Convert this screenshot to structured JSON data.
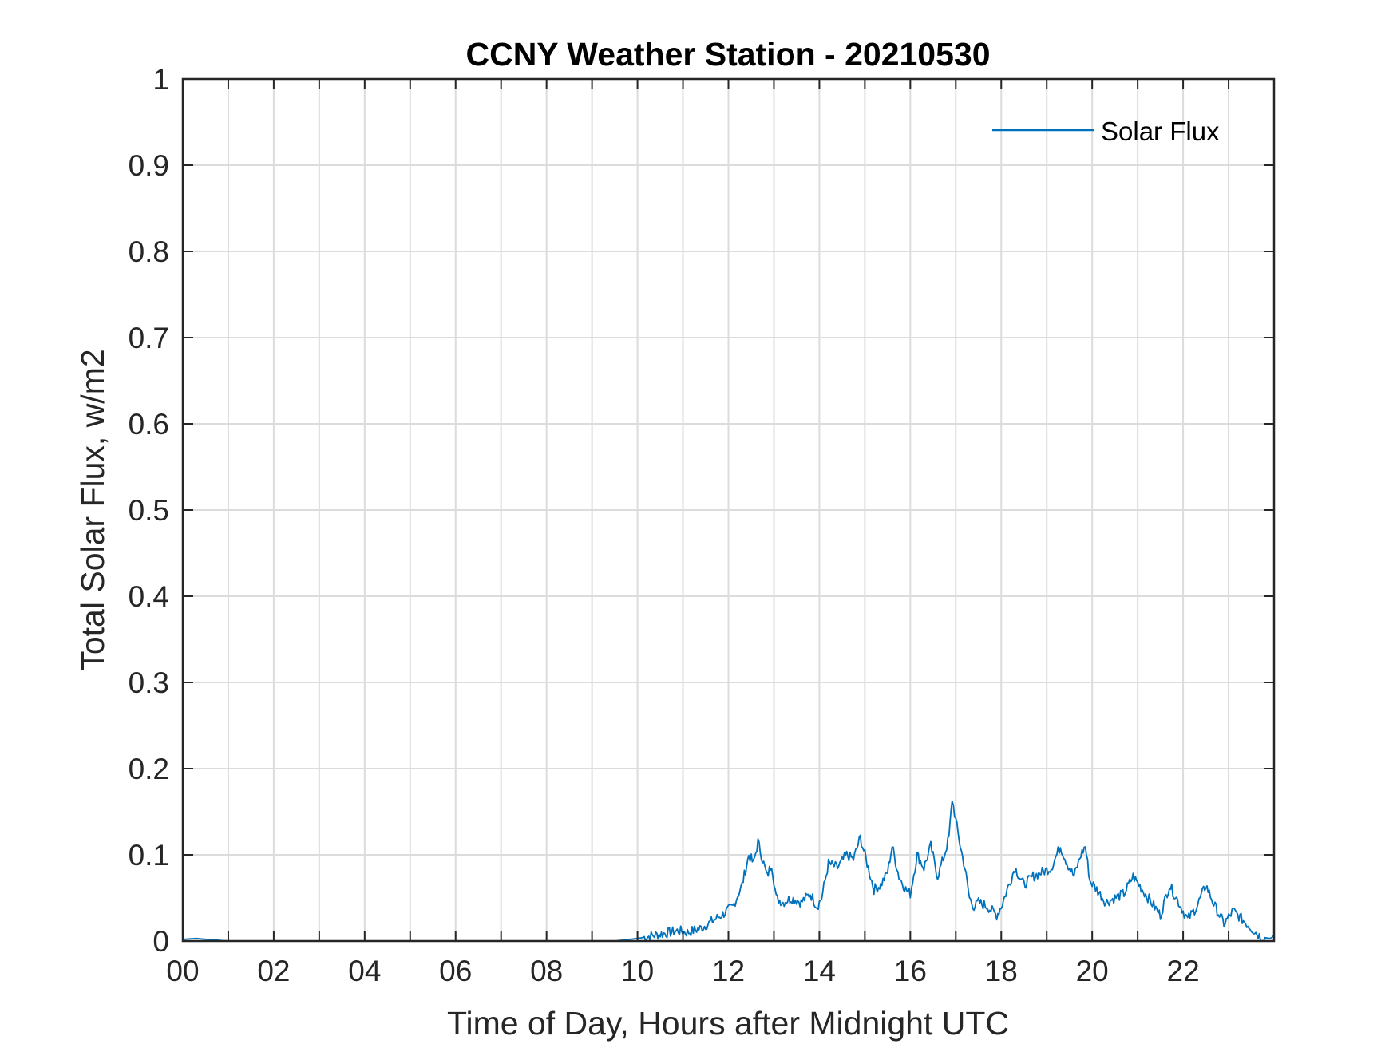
{
  "chart_data": {
    "type": "line",
    "title": "CCNY Weather Station - 20210530",
    "xlabel": "Time of Day, Hours after Midnight UTC",
    "ylabel": "Total Solar Flux, w/m2",
    "xlim": [
      0,
      24
    ],
    "ylim": [
      0,
      1
    ],
    "xticks": [
      0,
      2,
      4,
      6,
      8,
      10,
      12,
      14,
      16,
      18,
      20,
      22
    ],
    "xtick_labels": [
      "00",
      "02",
      "04",
      "06",
      "08",
      "10",
      "12",
      "14",
      "16",
      "18",
      "20",
      "22"
    ],
    "yticks": [
      0,
      0.1,
      0.2,
      0.3,
      0.4,
      0.5,
      0.6,
      0.7,
      0.8,
      0.9,
      1
    ],
    "ytick_labels": [
      "0",
      "0.1",
      "0.2",
      "0.3",
      "0.4",
      "0.5",
      "0.6",
      "0.7",
      "0.8",
      "0.9",
      "1"
    ],
    "grid": true,
    "legend": "top-right",
    "series": [
      {
        "name": "Solar Flux",
        "color": "#0072BD",
        "x": [
          0.0,
          0.3,
          0.5,
          1.0,
          2.0,
          4.0,
          6.0,
          8.0,
          9.5,
          10.0,
          10.3,
          10.6,
          10.9,
          11.1,
          11.4,
          11.7,
          11.9,
          12.1,
          12.3,
          12.45,
          12.55,
          12.65,
          12.75,
          12.85,
          12.95,
          13.05,
          13.2,
          13.4,
          13.6,
          13.8,
          13.95,
          14.05,
          14.2,
          14.4,
          14.6,
          14.75,
          14.9,
          15.0,
          15.1,
          15.2,
          15.35,
          15.5,
          15.6,
          15.75,
          15.9,
          16.0,
          16.15,
          16.3,
          16.45,
          16.6,
          16.75,
          16.85,
          16.92,
          17.0,
          17.1,
          17.2,
          17.3,
          17.4,
          17.5,
          17.7,
          17.9,
          18.0,
          18.1,
          18.3,
          18.5,
          18.7,
          18.9,
          19.1,
          19.3,
          19.45,
          19.6,
          19.75,
          19.85,
          19.95,
          20.1,
          20.3,
          20.5,
          20.7,
          20.9,
          21.1,
          21.3,
          21.5,
          21.7,
          21.9,
          22.1,
          22.3,
          22.5,
          22.7,
          22.9,
          23.1,
          23.3,
          23.5,
          23.7,
          23.9,
          24.0
        ],
        "y": [
          0.002,
          0.003,
          0.002,
          0.0,
          0.0,
          0.0,
          0.0,
          0.0,
          0.0,
          0.003,
          0.006,
          0.009,
          0.012,
          0.01,
          0.015,
          0.025,
          0.032,
          0.04,
          0.065,
          0.1,
          0.09,
          0.115,
          0.095,
          0.075,
          0.09,
          0.05,
          0.045,
          0.05,
          0.045,
          0.055,
          0.04,
          0.05,
          0.09,
          0.085,
          0.1,
          0.095,
          0.12,
          0.1,
          0.08,
          0.06,
          0.065,
          0.08,
          0.11,
          0.075,
          0.06,
          0.055,
          0.1,
          0.085,
          0.11,
          0.075,
          0.1,
          0.12,
          0.165,
          0.14,
          0.11,
          0.085,
          0.05,
          0.04,
          0.045,
          0.04,
          0.03,
          0.04,
          0.055,
          0.085,
          0.065,
          0.075,
          0.08,
          0.085,
          0.11,
          0.09,
          0.075,
          0.1,
          0.11,
          0.07,
          0.06,
          0.045,
          0.05,
          0.055,
          0.075,
          0.06,
          0.045,
          0.03,
          0.065,
          0.045,
          0.025,
          0.04,
          0.065,
          0.04,
          0.02,
          0.035,
          0.025,
          0.015,
          0.005,
          0.003,
          0.005
        ]
      }
    ]
  }
}
